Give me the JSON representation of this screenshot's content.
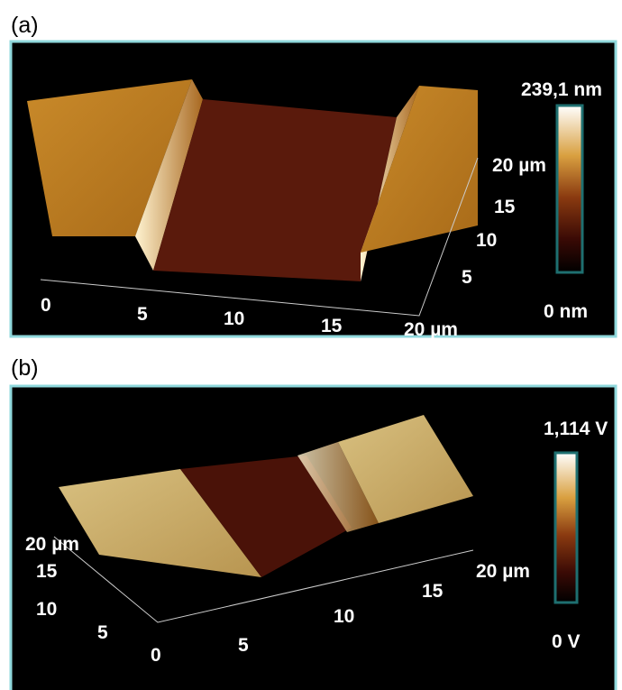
{
  "panels": [
    {
      "label": "(a)",
      "x_ticks": [
        "0",
        "5",
        "10",
        "15",
        "20 µm"
      ],
      "y_ticks": [
        "5",
        "10",
        "15",
        "20 µm"
      ],
      "colorbar": {
        "max": "239,1 nm",
        "min": "0 nm"
      }
    },
    {
      "label": "(b)",
      "x_ticks": [
        "0",
        "5",
        "10",
        "15",
        "20 µm"
      ],
      "y_ticks": [
        "5",
        "10",
        "15",
        "20 µm"
      ],
      "colorbar": {
        "max": "1,114 V",
        "min": "0 V"
      }
    }
  ]
}
